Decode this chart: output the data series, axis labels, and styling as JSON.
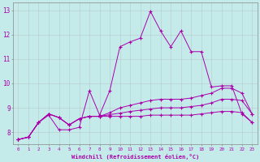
{
  "xlabel": "Windchill (Refroidissement éolien,°C)",
  "xlim": [
    -0.5,
    23.5
  ],
  "ylim": [
    7.5,
    13.3
  ],
  "yticks": [
    8,
    9,
    10,
    11,
    12,
    13
  ],
  "xticks": [
    0,
    1,
    2,
    3,
    4,
    5,
    6,
    7,
    8,
    9,
    10,
    11,
    12,
    13,
    14,
    15,
    16,
    17,
    18,
    19,
    20,
    21,
    22,
    23
  ],
  "background_color": "#c5eaea",
  "grid_color": "#aaaaaa",
  "line_color": "#aa00aa",
  "lines": [
    [
      7.7,
      7.8,
      8.4,
      8.7,
      8.1,
      8.1,
      8.2,
      9.7,
      8.7,
      9.7,
      11.5,
      11.7,
      11.85,
      12.95,
      12.15,
      11.5,
      12.15,
      11.3,
      11.3,
      9.85,
      9.9,
      9.9,
      8.75,
      8.4
    ],
    [
      7.7,
      7.8,
      8.4,
      8.75,
      8.6,
      8.3,
      8.55,
      8.65,
      8.65,
      8.65,
      8.65,
      8.65,
      8.65,
      8.7,
      8.7,
      8.7,
      8.7,
      8.7,
      8.75,
      8.8,
      8.85,
      8.85,
      8.8,
      8.4
    ],
    [
      7.7,
      7.8,
      8.4,
      8.75,
      8.6,
      8.3,
      8.55,
      8.65,
      8.65,
      8.8,
      9.0,
      9.1,
      9.2,
      9.3,
      9.35,
      9.35,
      9.35,
      9.4,
      9.5,
      9.6,
      9.8,
      9.8,
      9.6,
      8.75
    ],
    [
      7.7,
      7.8,
      8.4,
      8.75,
      8.6,
      8.3,
      8.55,
      8.65,
      8.65,
      8.72,
      8.78,
      8.85,
      8.9,
      8.95,
      9.0,
      9.0,
      9.0,
      9.05,
      9.1,
      9.2,
      9.35,
      9.35,
      9.3,
      8.75
    ]
  ]
}
